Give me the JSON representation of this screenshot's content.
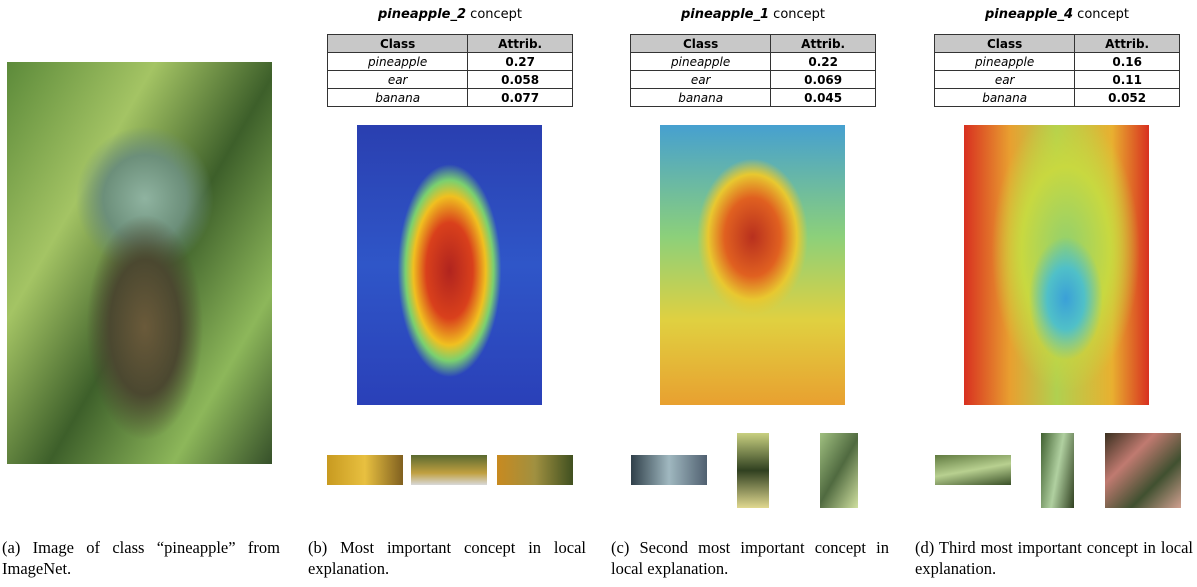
{
  "panels": [
    {
      "caption": "(a) Image of class “pineapple” from ImageNet."
    },
    {
      "title": {
        "concept": "pineapple_2",
        "suffix": "concept"
      },
      "table": {
        "header": [
          "Class",
          "Attrib."
        ],
        "rows": [
          [
            "pineapple",
            0.27
          ],
          [
            "ear",
            0.058
          ],
          [
            "banana",
            0.077
          ]
        ]
      },
      "caption": "(b) Most important concept in local explanation."
    },
    {
      "title": {
        "concept": "pineapple_1",
        "suffix": "concept"
      },
      "table": {
        "header": [
          "Class",
          "Attrib."
        ],
        "rows": [
          [
            "pineapple",
            0.22
          ],
          [
            "ear",
            0.069
          ],
          [
            "banana",
            0.045
          ]
        ]
      },
      "caption": "(c) Second most important concept in local explanation."
    },
    {
      "title": {
        "concept": "pineapple_4",
        "suffix": "concept"
      },
      "table": {
        "header": [
          "Class",
          "Attrib."
        ],
        "rows": [
          [
            "pineapple",
            0.16
          ],
          [
            "ear",
            0.11
          ],
          [
            "banana",
            0.052
          ]
        ]
      },
      "caption": "(d) Third most important concept in local explanation."
    }
  ]
}
